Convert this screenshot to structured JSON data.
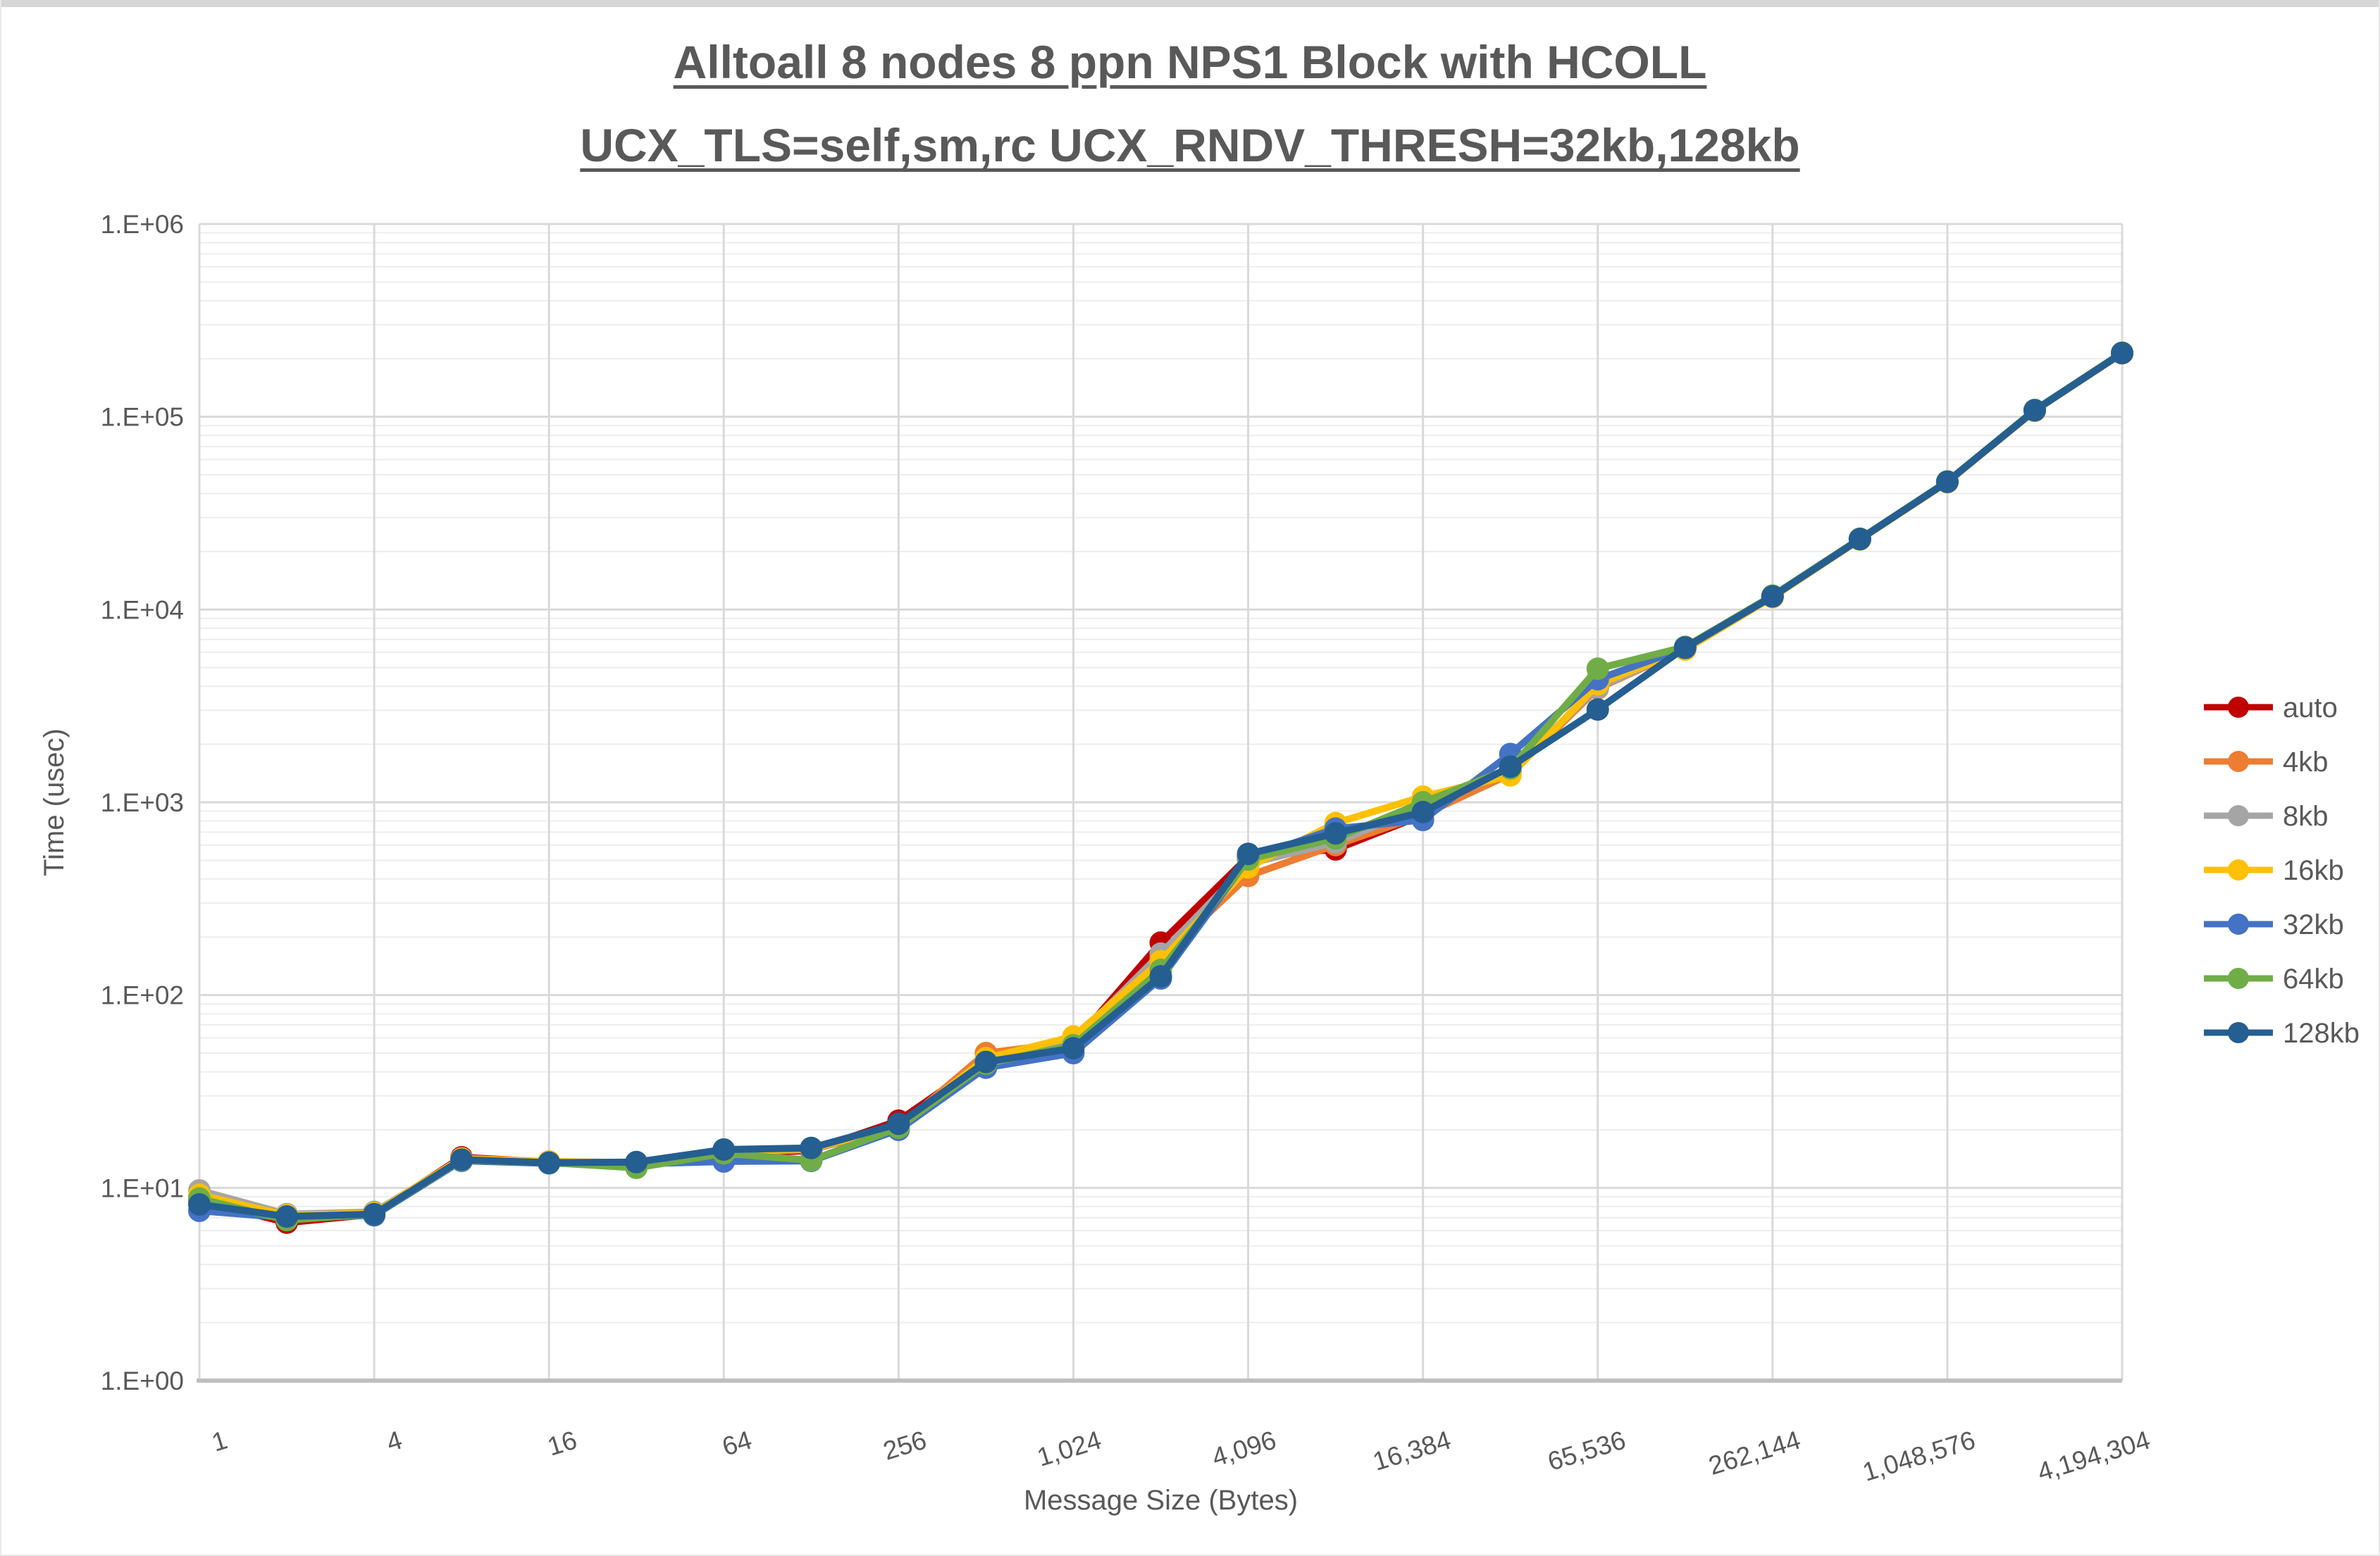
{
  "chart_data": {
    "type": "line",
    "title_line1": "Alltoall 8 nodes 8 ppn NPS1 Block with HCOLL",
    "title_line2": "UCX_TLS=self,sm,rc UCX_RNDV_THRESH=32kb,128kb",
    "xlabel": "Message Size (Bytes)",
    "ylabel": "Time (usec)",
    "x_axis_type": "log2-categories",
    "y_axis_type": "log10",
    "ylim": [
      1,
      1000000
    ],
    "grid": "major-and-log-minor",
    "legend_position": "right",
    "y_ticks": [
      "1.E+00",
      "1.E+01",
      "1.E+02",
      "1.E+03",
      "1.E+04",
      "1.E+05",
      "1.E+06"
    ],
    "x_ticks": [
      "1",
      "4",
      "16",
      "64",
      "256",
      "1,024",
      "4,096",
      "16,384",
      "65,536",
      "262,144",
      "1,048,576",
      "4,194,304"
    ],
    "sizes": [
      1,
      2,
      4,
      8,
      16,
      32,
      64,
      128,
      256,
      512,
      1024,
      2048,
      4096,
      8192,
      16384,
      32768,
      65536,
      131072,
      262144,
      524288,
      1048576,
      2097152,
      4194304
    ],
    "series": [
      {
        "name": "auto",
        "color": "#C00000",
        "values": [
          8.6,
          6.6,
          7.3,
          14.4,
          13.6,
          12.9,
          15.0,
          15.6,
          22.3,
          46,
          56,
          187,
          520,
          570,
          860,
          1450,
          3950,
          6300,
          11700,
          23200,
          46000,
          108000,
          214000
        ]
      },
      {
        "name": "4kb",
        "color": "#ED7D31",
        "values": [
          9.0,
          7.2,
          7.4,
          14.0,
          13.5,
          13.4,
          15.2,
          15.8,
          20.6,
          50,
          57,
          155,
          415,
          600,
          860,
          1400,
          3900,
          6250,
          11650,
          23100,
          45800,
          107500,
          213500
        ]
      },
      {
        "name": "8kb",
        "color": "#A5A5A5",
        "values": [
          9.7,
          7.3,
          7.5,
          14.0,
          13.6,
          13.5,
          15.3,
          15.9,
          20.8,
          46,
          58,
          164,
          480,
          620,
          950,
          1450,
          3950,
          6280,
          11650,
          23150,
          45900,
          107800,
          213800
        ]
      },
      {
        "name": "16kb",
        "color": "#FFC000",
        "values": [
          9.2,
          7.2,
          7.4,
          14.2,
          13.7,
          13.5,
          15.3,
          16.0,
          20.9,
          47,
          61,
          150,
          460,
          780,
          1070,
          1380,
          4100,
          6200,
          11600,
          23100,
          45800,
          107600,
          213600
        ]
      },
      {
        "name": "32kb",
        "color": "#4472C4",
        "values": [
          7.6,
          7.0,
          7.2,
          13.8,
          13.4,
          13.3,
          13.7,
          13.8,
          20.0,
          42,
          50,
          122,
          510,
          730,
          810,
          1780,
          4350,
          6320,
          11700,
          23200,
          46000,
          108000,
          214000
        ]
      },
      {
        "name": "64kb",
        "color": "#70AD47",
        "values": [
          8.8,
          6.8,
          7.3,
          13.9,
          13.5,
          12.7,
          15.1,
          13.9,
          20.5,
          44,
          55,
          135,
          505,
          650,
          1000,
          1500,
          4930,
          6400,
          11800,
          23300,
          46200,
          108500,
          215000
        ]
      },
      {
        "name": "128kb",
        "color": "#255E91",
        "values": [
          8.2,
          7.1,
          7.3,
          14.0,
          13.5,
          13.6,
          15.8,
          16.1,
          21.5,
          45,
          53,
          125,
          540,
          690,
          890,
          1530,
          3030,
          6350,
          11700,
          23200,
          46000,
          108000,
          214000
        ]
      }
    ],
    "colors": {
      "gridline_major": "#D9D9D9",
      "gridline_minor": "#EDEDED",
      "axis_line": "#BFBFBF",
      "tick_text": "#595959",
      "title_text": "#595959",
      "legend_text": "#595959"
    }
  }
}
